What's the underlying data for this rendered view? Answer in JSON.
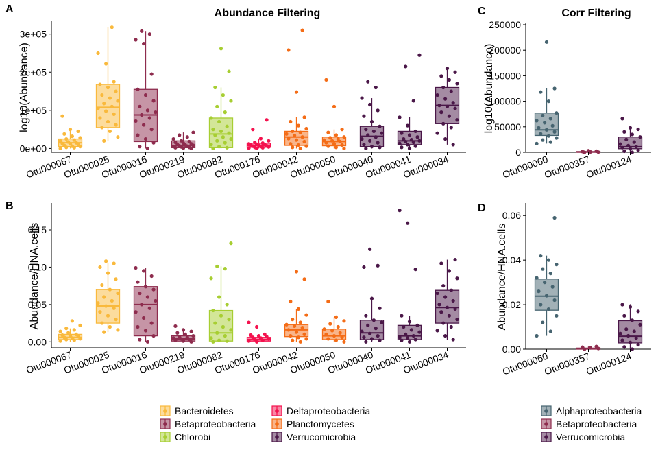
{
  "palette": {
    "Bacteroidetes": "#F9B93C",
    "Betaproteobacteria": "#8E2C4E",
    "Chlorobi": "#A7CE32",
    "Deltaproteobacteria": "#F4124E",
    "Planctomycetes": "#F46C16",
    "Verrucomicrobia": "#4A1748",
    "Alphaproteobacteria": "#466470"
  },
  "legends": {
    "left": [
      "Bacteroidetes",
      "Betaproteobacteria",
      "Chlorobi",
      "Deltaproteobacteria",
      "Planctomycetes",
      "Verrucomicrobia"
    ],
    "right": [
      "Alphaproteobacteria",
      "Betaproteobacteria",
      "Verrucomicrobia"
    ]
  },
  "chart_data": [
    {
      "id": "A",
      "panel_label": "A",
      "type": "box",
      "title": "Abundance Filtering",
      "xlabel": "",
      "ylabel": "log10(Abundance)",
      "ylim": [
        -10000,
        330000
      ],
      "yticks": [
        0,
        100000,
        200000,
        300000
      ],
      "ytick_labels": [
        "0e+00",
        "1e+05",
        "2e+05",
        "3e+05"
      ],
      "categories": [
        "Otu000067",
        "Otu000025",
        "Otu000016",
        "Otu000219",
        "Otu000082",
        "Otu000176",
        "Otu000042",
        "Otu000050",
        "Otu000040",
        "Otu000041",
        "Otu000034"
      ],
      "groups": [
        "Bacteroidetes",
        "Bacteroidetes",
        "Betaproteobacteria",
        "Betaproteobacteria",
        "Chlorobi",
        "Deltaproteobacteria",
        "Planctomycetes",
        "Planctomycetes",
        "Verrucomicrobia",
        "Verrucomicrobia",
        "Verrucomicrobia"
      ],
      "boxes": [
        {
          "q1": 5000,
          "median": 15000,
          "q3": 25000,
          "whisker_low": 0,
          "whisker_high": 50000
        },
        {
          "q1": 55000,
          "median": 108000,
          "q3": 168000,
          "whisker_low": 20000,
          "whisker_high": 318000
        },
        {
          "q1": 18000,
          "median": 88000,
          "q3": 155000,
          "whisker_low": 0,
          "whisker_high": 308000
        },
        {
          "q1": 2000,
          "median": 8000,
          "q3": 20000,
          "whisker_low": 0,
          "whisker_high": 42000
        },
        {
          "q1": 2000,
          "median": 38000,
          "q3": 80000,
          "whisker_low": 0,
          "whisker_high": 160000
        },
        {
          "q1": 3000,
          "median": 8000,
          "q3": 14000,
          "whisker_low": 0,
          "whisker_high": 26000
        },
        {
          "q1": 8000,
          "median": 30000,
          "q3": 45000,
          "whisker_low": 0,
          "whisker_high": 82000
        },
        {
          "q1": 7000,
          "median": 18000,
          "q3": 30000,
          "whisker_low": 0,
          "whisker_high": 50000
        },
        {
          "q1": 5000,
          "median": 32000,
          "q3": 58000,
          "whisker_low": 0,
          "whisker_high": 132000
        },
        {
          "q1": 10000,
          "median": 20000,
          "q3": 45000,
          "whisker_low": 0,
          "whisker_high": 82000
        },
        {
          "q1": 65000,
          "median": 113000,
          "q3": 160000,
          "whisker_low": 10000,
          "whisker_high": 210000
        }
      ],
      "points": [
        [
          0,
          2000,
          3000,
          5000,
          6000,
          8000,
          10000,
          12000,
          13000,
          15000,
          17000,
          20000,
          22000,
          25000,
          28000,
          32000,
          38000,
          45000,
          50000,
          85000
        ],
        [
          20000,
          30000,
          45000,
          55000,
          62000,
          70000,
          80000,
          90000,
          98000,
          105000,
          110000,
          118000,
          125000,
          132000,
          140000,
          150000,
          160000,
          168000,
          175000,
          222000,
          250000,
          318000
        ],
        [
          0,
          5000,
          15000,
          25000,
          35000,
          50000,
          62000,
          72000,
          80000,
          88000,
          95000,
          100000,
          110000,
          125000,
          140000,
          155000,
          195000,
          275000,
          285000,
          300000,
          308000
        ],
        [
          0,
          1000,
          2000,
          3000,
          4000,
          5000,
          6000,
          7000,
          8000,
          9000,
          10000,
          12000,
          14000,
          16000,
          18000,
          20000,
          25000,
          30000,
          35000,
          42000
        ],
        [
          0,
          2000,
          5000,
          10000,
          15000,
          20000,
          25000,
          30000,
          35000,
          40000,
          45000,
          50000,
          58000,
          70000,
          80000,
          95000,
          110000,
          125000,
          140000,
          160000,
          202000,
          262000
        ],
        [
          0,
          1000,
          2000,
          3000,
          4000,
          5000,
          6000,
          7000,
          8000,
          9000,
          10000,
          11000,
          12000,
          14000,
          16000,
          20000,
          26000,
          50000,
          75000
        ],
        [
          0,
          3000,
          6000,
          9000,
          12000,
          18000,
          22000,
          26000,
          30000,
          34000,
          38000,
          42000,
          45000,
          52000,
          60000,
          70000,
          82000,
          148000,
          258000,
          310000
        ],
        [
          0,
          3000,
          6000,
          9000,
          12000,
          15000,
          18000,
          20000,
          22000,
          25000,
          28000,
          30000,
          35000,
          42000,
          50000,
          110000,
          180000
        ],
        [
          0,
          3000,
          5000,
          10000,
          15000,
          20000,
          25000,
          30000,
          35000,
          40000,
          45000,
          50000,
          58000,
          70000,
          85000,
          100000,
          115000,
          132000,
          160000,
          175000
        ],
        [
          0,
          3000,
          6000,
          10000,
          13000,
          16000,
          18000,
          20000,
          23000,
          25000,
          30000,
          35000,
          40000,
          45000,
          60000,
          82000,
          125000,
          215000,
          245000
        ],
        [
          10000,
          25000,
          40000,
          55000,
          65000,
          75000,
          85000,
          95000,
          105000,
          110000,
          113000,
          120000,
          130000,
          140000,
          150000,
          160000,
          170000,
          180000,
          190000,
          200000,
          210000
        ]
      ]
    },
    {
      "id": "B",
      "panel_label": "B",
      "type": "box",
      "title": "",
      "xlabel": "",
      "ylabel": "Abundance/HNA.cells",
      "ylim": [
        -0.008,
        0.184
      ],
      "yticks": [
        0,
        0.05,
        0.1,
        0.15
      ],
      "ytick_labels": [
        "0.00",
        "0.05",
        "0.10",
        "0.15"
      ],
      "categories": [
        "Otu000067",
        "Otu000025",
        "Otu000016",
        "Otu000219",
        "Otu000082",
        "Otu000176",
        "Otu000042",
        "Otu000050",
        "Otu000040",
        "Otu000041",
        "Otu000034"
      ],
      "groups": [
        "Bacteroidetes",
        "Bacteroidetes",
        "Betaproteobacteria",
        "Betaproteobacteria",
        "Chlorobi",
        "Deltaproteobacteria",
        "Planctomycetes",
        "Planctomycetes",
        "Verrucomicrobia",
        "Verrucomicrobia",
        "Verrucomicrobia"
      ],
      "boxes": [
        {
          "q1": 0.003,
          "median": 0.006,
          "q3": 0.01,
          "whisker_low": 0,
          "whisker_high": 0.018
        },
        {
          "q1": 0.025,
          "median": 0.048,
          "q3": 0.07,
          "whisker_low": 0.013,
          "whisker_high": 0.105
        },
        {
          "q1": 0.008,
          "median": 0.05,
          "q3": 0.074,
          "whisker_low": 0,
          "whisker_high": 0.099
        },
        {
          "q1": 0.001,
          "median": 0.004,
          "q3": 0.008,
          "whisker_low": 0,
          "whisker_high": 0.016
        },
        {
          "q1": 0.001,
          "median": 0.012,
          "q3": 0.042,
          "whisker_low": 0,
          "whisker_high": 0.101
        },
        {
          "q1": 0.001,
          "median": 0.003,
          "q3": 0.006,
          "whisker_low": 0,
          "whisker_high": 0.01
        },
        {
          "q1": 0.007,
          "median": 0.016,
          "q3": 0.023,
          "whisker_low": 0,
          "whisker_high": 0.044
        },
        {
          "q1": 0.003,
          "median": 0.008,
          "q3": 0.017,
          "whisker_low": 0,
          "whisker_high": 0.033
        },
        {
          "q1": 0.003,
          "median": 0.012,
          "q3": 0.029,
          "whisker_low": 0,
          "whisker_high": 0.058
        },
        {
          "q1": 0.003,
          "median": 0.008,
          "q3": 0.022,
          "whisker_low": 0,
          "whisker_high": 0.035
        },
        {
          "q1": 0.025,
          "median": 0.046,
          "q3": 0.069,
          "whisker_low": 0.003,
          "whisker_high": 0.11
        }
      ],
      "points": [
        [
          0.001,
          0.002,
          0.003,
          0.004,
          0.005,
          0.006,
          0.007,
          0.008,
          0.009,
          0.01,
          0.012,
          0.014,
          0.016,
          0.018,
          0.022,
          0.028
        ],
        [
          0.013,
          0.016,
          0.02,
          0.025,
          0.03,
          0.035,
          0.04,
          0.045,
          0.048,
          0.052,
          0.055,
          0.06,
          0.065,
          0.07,
          0.076,
          0.084,
          0.092,
          0.1,
          0.105,
          0.108
        ],
        [
          0,
          0.003,
          0.008,
          0.015,
          0.02,
          0.025,
          0.032,
          0.04,
          0.045,
          0.05,
          0.055,
          0.06,
          0.065,
          0.07,
          0.074,
          0.08,
          0.088,
          0.095,
          0.099
        ],
        [
          0,
          0.001,
          0.002,
          0.003,
          0.004,
          0.005,
          0.006,
          0.007,
          0.008,
          0.01,
          0.012,
          0.014,
          0.016,
          0.021
        ],
        [
          0,
          0.001,
          0.002,
          0.005,
          0.008,
          0.012,
          0.016,
          0.02,
          0.025,
          0.03,
          0.035,
          0.042,
          0.05,
          0.06,
          0.085,
          0.098,
          0.101,
          0.132
        ],
        [
          0,
          0.001,
          0.002,
          0.003,
          0.004,
          0.005,
          0.006,
          0.007,
          0.008,
          0.009,
          0.01,
          0.02,
          0.026
        ],
        [
          0,
          0.002,
          0.004,
          0.006,
          0.008,
          0.01,
          0.013,
          0.016,
          0.019,
          0.021,
          0.023,
          0.026,
          0.03,
          0.036,
          0.044,
          0.054,
          0.084,
          0.094
        ],
        [
          0,
          0.002,
          0.004,
          0.006,
          0.008,
          0.01,
          0.012,
          0.015,
          0.017,
          0.02,
          0.024,
          0.028,
          0.033,
          0.054
        ],
        [
          0,
          0.002,
          0.004,
          0.006,
          0.008,
          0.011,
          0.014,
          0.018,
          0.022,
          0.026,
          0.029,
          0.035,
          0.045,
          0.058,
          0.1,
          0.102,
          0.124
        ],
        [
          0,
          0.002,
          0.003,
          0.005,
          0.006,
          0.008,
          0.01,
          0.013,
          0.016,
          0.02,
          0.022,
          0.027,
          0.035,
          0.097,
          0.159,
          0.176
        ],
        [
          0.003,
          0.008,
          0.015,
          0.02,
          0.025,
          0.03,
          0.035,
          0.04,
          0.044,
          0.046,
          0.05,
          0.055,
          0.06,
          0.065,
          0.069,
          0.075,
          0.085,
          0.095,
          0.105,
          0.11
        ]
      ]
    },
    {
      "id": "C",
      "panel_label": "C",
      "type": "box",
      "title": "Corr Filtering",
      "xlabel": "",
      "ylabel": "log10(Abundance)",
      "ylim": [
        0,
        250000
      ],
      "yticks": [
        0,
        50000,
        100000,
        150000,
        200000,
        250000
      ],
      "ytick_labels": [
        "0",
        "50000",
        "100000",
        "150000",
        "200000",
        "250000"
      ],
      "categories": [
        "Otu000060",
        "Otu000357",
        "Otu000124"
      ],
      "groups": [
        "Alphaproteobacteria",
        "Betaproteobacteria",
        "Verrucomicrobia"
      ],
      "boxes": [
        {
          "q1": 33000,
          "median": 44000,
          "q3": 77000,
          "whisker_low": 17000,
          "whisker_high": 125000
        },
        {
          "q1": 0,
          "median": 500,
          "q3": 1500,
          "whisker_low": 0,
          "whisker_high": 3000
        },
        {
          "q1": 7000,
          "median": 11000,
          "q3": 30000,
          "whisker_low": 0,
          "whisker_high": 48000
        }
      ],
      "points": [
        [
          17000,
          20000,
          24000,
          28000,
          32000,
          36000,
          40000,
          44000,
          48000,
          52000,
          58000,
          62000,
          66000,
          72000,
          77000,
          100000,
          118000,
          125000,
          216000
        ],
        [
          0,
          400,
          800,
          1500,
          2200,
          3000
        ],
        [
          0,
          2000,
          4000,
          7000,
          9000,
          11000,
          13000,
          16000,
          20000,
          25000,
          30000,
          35000,
          40000,
          45000,
          48000,
          66000
        ]
      ]
    },
    {
      "id": "D",
      "panel_label": "D",
      "type": "box",
      "title": "",
      "xlabel": "",
      "ylabel": "Abundance/HNA.cells",
      "ylim": [
        0,
        0.065
      ],
      "yticks": [
        0,
        0.02,
        0.04,
        0.06
      ],
      "ytick_labels": [
        "0.00",
        "0.02",
        "0.04",
        "0.06"
      ],
      "categories": [
        "Otu000060",
        "Otu000357",
        "Otu000124"
      ],
      "groups": [
        "Alphaproteobacteria",
        "Betaproteobacteria",
        "Verrucomicrobia"
      ],
      "boxes": [
        {
          "q1": 0.0175,
          "median": 0.0238,
          "q3": 0.0315,
          "whisker_low": 0.006,
          "whisker_high": 0.042
        },
        {
          "q1": 0,
          "median": 0.0002,
          "q3": 0.0005,
          "whisker_low": 0,
          "whisker_high": 0.0012
        },
        {
          "q1": 0.0028,
          "median": 0.0058,
          "q3": 0.0128,
          "whisker_low": 0,
          "whisker_high": 0.0202
        }
      ],
      "points": [
        [
          0.006,
          0.008,
          0.012,
          0.015,
          0.018,
          0.02,
          0.022,
          0.024,
          0.026,
          0.028,
          0.03,
          0.032,
          0.034,
          0.036,
          0.038,
          0.04,
          0.042,
          0.059
        ],
        [
          0,
          0.0003,
          0.0006,
          0.0009,
          0.0012
        ],
        [
          0,
          0.001,
          0.002,
          0.003,
          0.004,
          0.005,
          0.006,
          0.007,
          0.008,
          0.009,
          0.011,
          0.013,
          0.015,
          0.017,
          0.019,
          0.02
        ]
      ]
    }
  ]
}
